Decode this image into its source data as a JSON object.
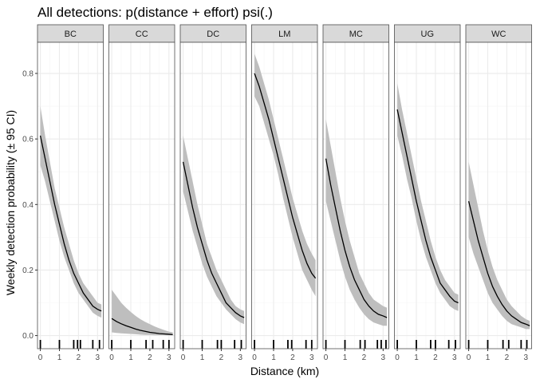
{
  "chart_data": {
    "type": "line",
    "title": "All detections: p(distance + effort) psi(.)",
    "xlabel": "Distance (km)",
    "ylabel": "Weekly detection probability (± 95 CI)",
    "xlim": [
      -0.15,
      3.3
    ],
    "ylim": [
      -0.04,
      0.895
    ],
    "xticks": [
      0,
      1,
      2,
      3
    ],
    "xtick_labels": [
      "0",
      "1",
      "2",
      "3"
    ],
    "yticks": [
      0.0,
      0.2,
      0.4,
      0.6,
      0.8
    ],
    "ytick_labels": [
      "0.0",
      "0.2",
      "0.4",
      "0.6",
      "0.8"
    ],
    "grid": true,
    "legend": "none",
    "colors": {
      "line": "#000000",
      "ribbon": "#bebebe",
      "strip_fill": "#d9d9d9",
      "grid_major": "#ebebeb",
      "grid_minor": "#f5f5f5",
      "panel_border": "#4d4d4d",
      "rug": "#000000"
    },
    "x": [
      0.0,
      0.25,
      0.5,
      0.75,
      1.0,
      1.25,
      1.5,
      1.75,
      2.0,
      2.25,
      2.5,
      2.75,
      3.0,
      3.2
    ],
    "panels": [
      {
        "name": "BC",
        "fit": [
          0.61,
          0.54,
          0.47,
          0.4,
          0.34,
          0.28,
          0.23,
          0.19,
          0.16,
          0.13,
          0.11,
          0.09,
          0.08,
          0.075
        ],
        "lower": [
          0.52,
          0.47,
          0.41,
          0.35,
          0.29,
          0.24,
          0.2,
          0.16,
          0.13,
          0.11,
          0.09,
          0.07,
          0.06,
          0.055
        ],
        "upper": [
          0.7,
          0.61,
          0.53,
          0.45,
          0.39,
          0.33,
          0.28,
          0.23,
          0.19,
          0.16,
          0.14,
          0.12,
          0.1,
          0.095
        ],
        "rug": [
          0.0,
          1.0,
          1.75,
          1.95,
          2.1,
          2.75,
          3.1
        ]
      },
      {
        "name": "CC",
        "fit": [
          0.052,
          0.043,
          0.036,
          0.03,
          0.025,
          0.02,
          0.016,
          0.013,
          0.01,
          0.008,
          0.006,
          0.005,
          0.004,
          0.003
        ],
        "lower": [
          0.01,
          0.008,
          0.007,
          0.006,
          0.005,
          0.004,
          0.003,
          0.002,
          0.002,
          0.001,
          0.001,
          0.001,
          0.001,
          0.001
        ],
        "upper": [
          0.14,
          0.12,
          0.1,
          0.085,
          0.072,
          0.06,
          0.05,
          0.042,
          0.035,
          0.028,
          0.022,
          0.017,
          0.012,
          0.01
        ],
        "rug": [
          0.0,
          1.0,
          1.8,
          2.15,
          2.7,
          3.0
        ]
      },
      {
        "name": "DC",
        "fit": [
          0.53,
          0.46,
          0.39,
          0.33,
          0.28,
          0.23,
          0.19,
          0.16,
          0.13,
          0.1,
          0.085,
          0.07,
          0.06,
          0.055
        ],
        "lower": [
          0.44,
          0.38,
          0.32,
          0.27,
          0.22,
          0.18,
          0.15,
          0.12,
          0.1,
          0.08,
          0.065,
          0.05,
          0.04,
          0.035
        ],
        "upper": [
          0.61,
          0.54,
          0.47,
          0.4,
          0.34,
          0.28,
          0.24,
          0.2,
          0.17,
          0.14,
          0.11,
          0.09,
          0.08,
          0.075
        ],
        "rug": [
          0.0,
          1.0,
          1.8,
          2.0,
          2.7,
          3.05
        ]
      },
      {
        "name": "LM",
        "fit": [
          0.8,
          0.76,
          0.71,
          0.66,
          0.6,
          0.54,
          0.48,
          0.42,
          0.36,
          0.31,
          0.26,
          0.22,
          0.19,
          0.175
        ],
        "lower": [
          0.73,
          0.7,
          0.65,
          0.6,
          0.55,
          0.49,
          0.42,
          0.36,
          0.3,
          0.25,
          0.2,
          0.17,
          0.14,
          0.12
        ],
        "upper": [
          0.86,
          0.82,
          0.77,
          0.72,
          0.66,
          0.6,
          0.54,
          0.48,
          0.42,
          0.37,
          0.32,
          0.28,
          0.25,
          0.23
        ],
        "rug": [
          0.0,
          1.0,
          1.75,
          1.95,
          2.7,
          3.0
        ]
      },
      {
        "name": "MC",
        "fit": [
          0.54,
          0.46,
          0.39,
          0.32,
          0.26,
          0.21,
          0.17,
          0.14,
          0.11,
          0.09,
          0.075,
          0.065,
          0.06,
          0.055
        ],
        "lower": [
          0.41,
          0.35,
          0.29,
          0.23,
          0.18,
          0.14,
          0.11,
          0.085,
          0.065,
          0.05,
          0.04,
          0.035,
          0.03,
          0.03
        ],
        "upper": [
          0.66,
          0.58,
          0.5,
          0.42,
          0.35,
          0.29,
          0.24,
          0.19,
          0.16,
          0.13,
          0.11,
          0.1,
          0.09,
          0.085
        ],
        "rug": [
          0.0,
          1.0,
          1.8,
          2.05,
          2.7,
          2.9,
          3.15
        ]
      },
      {
        "name": "UG",
        "fit": [
          0.69,
          0.62,
          0.55,
          0.48,
          0.41,
          0.35,
          0.29,
          0.24,
          0.2,
          0.16,
          0.14,
          0.12,
          0.105,
          0.1
        ],
        "lower": [
          0.61,
          0.55,
          0.48,
          0.42,
          0.35,
          0.29,
          0.24,
          0.2,
          0.16,
          0.13,
          0.11,
          0.09,
          0.08,
          0.075
        ],
        "upper": [
          0.77,
          0.69,
          0.62,
          0.55,
          0.48,
          0.41,
          0.35,
          0.29,
          0.24,
          0.2,
          0.17,
          0.15,
          0.13,
          0.125
        ],
        "rug": [
          0.0,
          1.0,
          1.75,
          2.0,
          2.7,
          3.05
        ]
      },
      {
        "name": "WC",
        "fit": [
          0.41,
          0.35,
          0.29,
          0.24,
          0.19,
          0.15,
          0.12,
          0.095,
          0.075,
          0.06,
          0.05,
          0.04,
          0.035,
          0.03
        ],
        "lower": [
          0.3,
          0.25,
          0.21,
          0.17,
          0.13,
          0.1,
          0.08,
          0.06,
          0.045,
          0.035,
          0.03,
          0.025,
          0.02,
          0.02
        ],
        "upper": [
          0.53,
          0.46,
          0.39,
          0.32,
          0.26,
          0.21,
          0.17,
          0.14,
          0.11,
          0.09,
          0.075,
          0.06,
          0.05,
          0.045
        ],
        "rug": [
          0.0,
          1.0,
          1.8,
          2.1,
          2.75,
          3.05
        ]
      }
    ]
  }
}
